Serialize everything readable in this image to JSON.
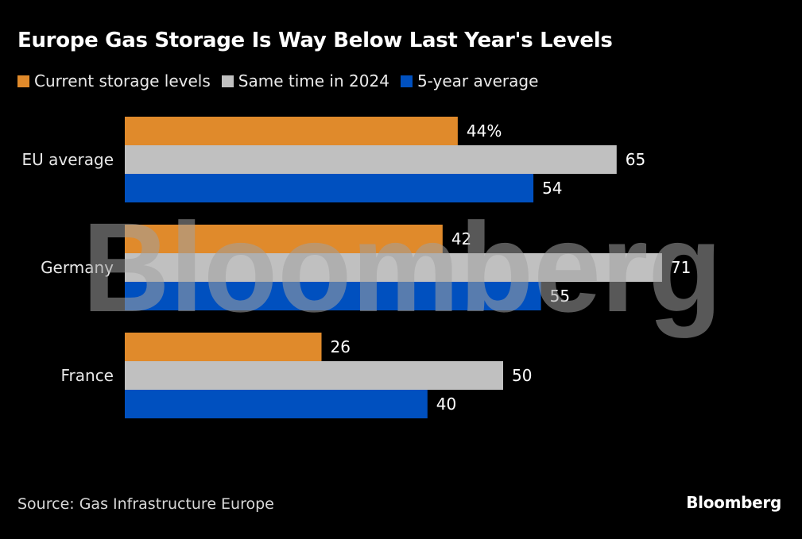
{
  "header": {
    "title": "Europe Gas Storage Is Way Below Last Year's Levels"
  },
  "footer": {
    "source": "Source: Gas Infrastructure Europe",
    "brand": "Bloomberg"
  },
  "watermark": "Bloomberg",
  "chart_data": {
    "type": "bar",
    "orientation": "horizontal",
    "title": "Europe Gas Storage Is Way Below Last Year's Levels",
    "xlabel": "",
    "ylabel": "",
    "unit": "%",
    "categories": [
      "EU average",
      "Germany",
      "France"
    ],
    "series": [
      {
        "name": "Current storage levels",
        "color": "#e08a2b",
        "values": [
          44,
          42,
          26
        ],
        "labels": [
          "44%",
          "42",
          "26"
        ]
      },
      {
        "name": "Same time in 2024",
        "color": "#c0c0c0",
        "values": [
          65,
          71,
          50
        ],
        "labels": [
          "65",
          "71",
          "50"
        ]
      },
      {
        "name": "5-year average",
        "color": "#0050bf",
        "values": [
          54,
          55,
          40
        ],
        "labels": [
          "54",
          "55",
          "40"
        ]
      }
    ],
    "xlim": [
      0,
      75
    ],
    "grid": false,
    "legend_position": "top-left"
  }
}
